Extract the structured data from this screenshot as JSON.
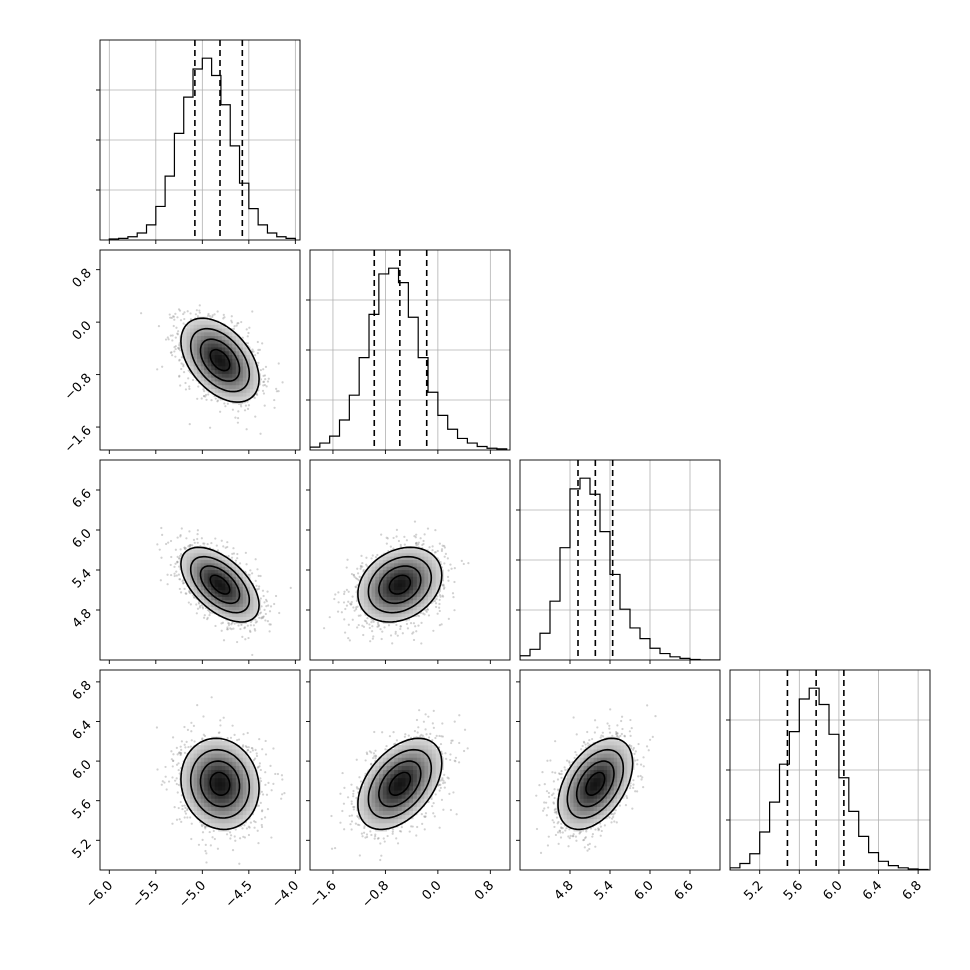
{
  "chart_data": {
    "type": "corner",
    "grid": true,
    "parameters": [
      {
        "range": [
          -6.1,
          -3.95
        ],
        "ticks": [
          -6.0,
          -5.5,
          -5.0,
          -4.5,
          -4.0
        ],
        "tick_labels": [
          "−6.0",
          "−5.5",
          "−5.0",
          "−4.5",
          "−4.0"
        ],
        "quantiles": [
          -5.08,
          -4.81,
          -4.57
        ],
        "histogram": {
          "bin_edges": [
            -6.0,
            -5.9,
            -5.8,
            -5.7,
            -5.6,
            -5.5,
            -5.4,
            -5.3,
            -5.2,
            -5.1,
            -5.0,
            -4.9,
            -4.8,
            -4.7,
            -4.6,
            -4.5,
            -4.4,
            -4.3,
            -4.2,
            -4.1,
            -4.0
          ],
          "counts": [
            2,
            3,
            6,
            13,
            28,
            62,
            118,
            197,
            264,
            316,
            336,
            304,
            250,
            174,
            105,
            58,
            28,
            13,
            6,
            3
          ]
        }
      },
      {
        "range": [
          -1.95,
          1.1
        ],
        "ticks": [
          -1.6,
          -0.8,
          0.0,
          0.8
        ],
        "tick_labels": [
          "−1.6",
          "−0.8",
          "0.0",
          "0.8"
        ],
        "quantiles": [
          -0.97,
          -0.58,
          -0.17
        ],
        "histogram": {
          "bin_edges": [
            -1.95,
            -1.8,
            -1.65,
            -1.5,
            -1.35,
            -1.2,
            -1.05,
            -0.9,
            -0.75,
            -0.6,
            -0.45,
            -0.3,
            -0.15,
            0.0,
            0.15,
            0.3,
            0.45,
            0.6,
            0.75,
            0.9,
            1.05
          ],
          "counts": [
            5,
            12,
            24,
            52,
            95,
            160,
            235,
            305,
            315,
            290,
            230,
            160,
            100,
            60,
            36,
            20,
            12,
            6,
            3,
            2
          ]
        }
      },
      {
        "range": [
          4.05,
          7.05
        ],
        "ticks": [
          4.8,
          5.4,
          6.0,
          6.6
        ],
        "tick_labels": [
          "4.8",
          "5.4",
          "6.0",
          "6.6"
        ],
        "quantiles": [
          4.92,
          5.18,
          5.44
        ],
        "histogram": {
          "bin_edges": [
            4.05,
            4.2,
            4.35,
            4.5,
            4.65,
            4.8,
            4.95,
            5.1,
            5.25,
            5.4,
            5.55,
            5.7,
            5.85,
            6.0,
            6.15,
            6.3,
            6.45,
            6.6,
            6.75,
            6.9,
            7.05
          ],
          "counts": [
            8,
            20,
            50,
            110,
            210,
            320,
            340,
            310,
            240,
            160,
            95,
            60,
            40,
            22,
            12,
            6,
            3,
            1,
            0,
            0
          ]
        }
      },
      {
        "range": [
          4.9,
          6.92
        ],
        "ticks": [
          5.2,
          5.6,
          6.0,
          6.4,
          6.8
        ],
        "tick_labels": [
          "5.2",
          "5.6",
          "6.0",
          "6.4",
          "6.8"
        ],
        "quantiles": [
          5.48,
          5.77,
          6.05
        ],
        "histogram": {
          "bin_edges": [
            4.9,
            5.0,
            5.1,
            5.2,
            5.3,
            5.4,
            5.5,
            5.6,
            5.7,
            5.8,
            5.9,
            6.0,
            6.1,
            6.2,
            6.3,
            6.4,
            6.5,
            6.6,
            6.7,
            6.8,
            6.9
          ],
          "counts": [
            4,
            12,
            30,
            70,
            125,
            195,
            255,
            315,
            335,
            305,
            250,
            170,
            108,
            62,
            32,
            16,
            8,
            4,
            2,
            1
          ]
        }
      }
    ],
    "pairs": [
      {
        "x": 0,
        "y": 1,
        "mean": [
          -4.81,
          -0.58
        ],
        "sd": [
          0.21,
          0.32
        ],
        "corr": -0.45
      },
      {
        "x": 0,
        "y": 2,
        "mean": [
          -4.81,
          5.18
        ],
        "sd": [
          0.21,
          0.28
        ],
        "corr": -0.55
      },
      {
        "x": 1,
        "y": 2,
        "mean": [
          -0.58,
          5.18
        ],
        "sd": [
          0.32,
          0.28
        ],
        "corr": 0.25
      },
      {
        "x": 0,
        "y": 3,
        "mean": [
          -4.81,
          5.77
        ],
        "sd": [
          0.21,
          0.23
        ],
        "corr": -0.1
      },
      {
        "x": 1,
        "y": 3,
        "mean": [
          -0.58,
          5.77
        ],
        "sd": [
          0.32,
          0.23
        ],
        "corr": 0.45
      },
      {
        "x": 2,
        "y": 3,
        "mean": [
          5.18,
          5.77
        ],
        "sd": [
          0.28,
          0.23
        ],
        "corr": 0.45
      }
    ],
    "contour_levels_sigma": [
      0.5,
      1.0,
      1.5,
      2.0
    ]
  }
}
